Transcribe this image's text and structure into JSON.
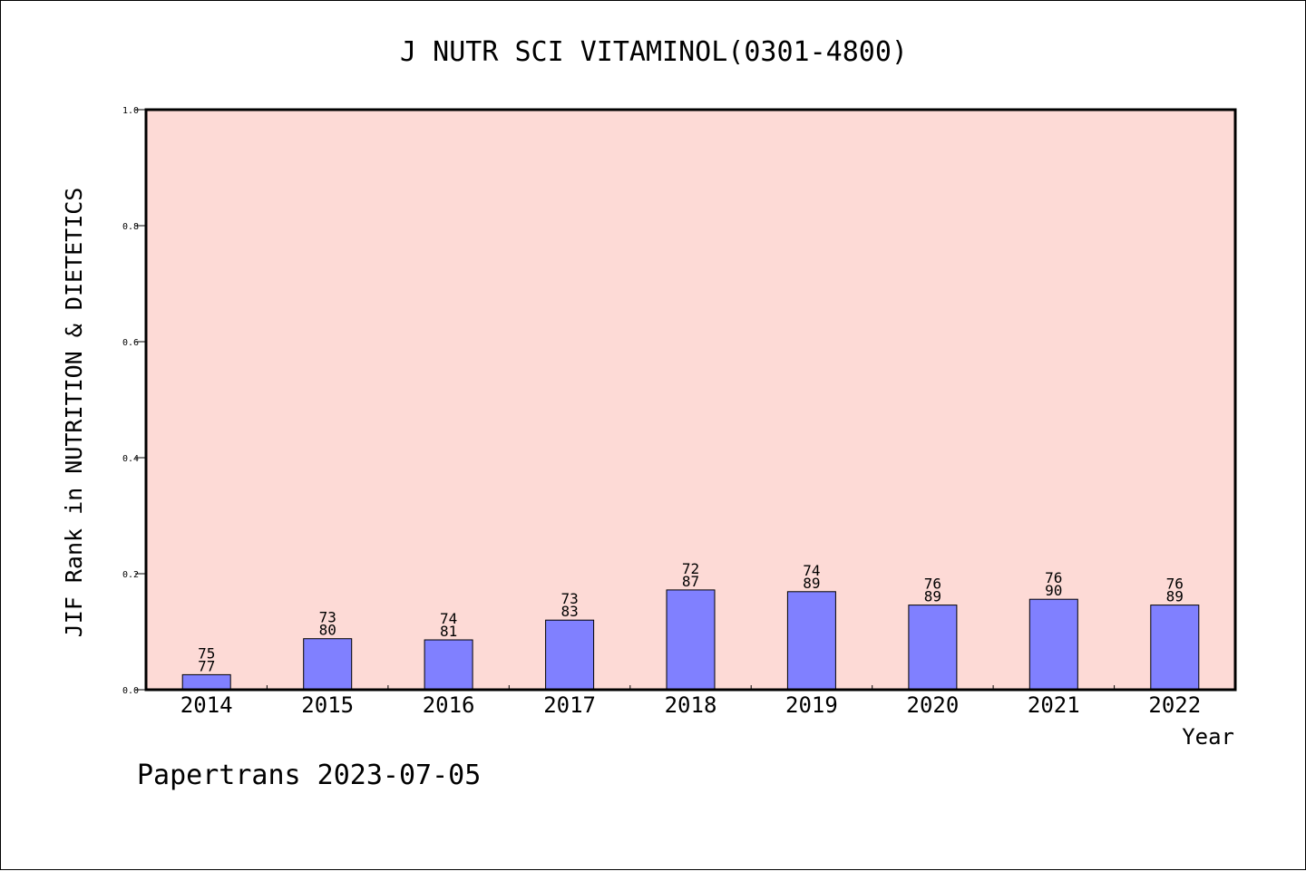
{
  "chart_data": {
    "type": "bar",
    "title": "J NUTR SCI VITAMINOL(0301-4800)",
    "xlabel": "Year",
    "ylabel": "JIF Rank in NUTRITION & DIETETICS",
    "ylim": [
      0,
      1.0
    ],
    "yticks": [
      "0.0",
      "0.2",
      "0.4",
      "0.6",
      "0.8",
      "1.0"
    ],
    "categories": [
      "2014",
      "2015",
      "2016",
      "2017",
      "2018",
      "2019",
      "2020",
      "2021",
      "2022"
    ],
    "values": [
      0.026,
      0.088,
      0.086,
      0.12,
      0.172,
      0.169,
      0.146,
      0.156,
      0.146
    ],
    "labels": [
      [
        "75",
        "77"
      ],
      [
        "73",
        "80"
      ],
      [
        "74",
        "81"
      ],
      [
        "73",
        "83"
      ],
      [
        "72",
        "87"
      ],
      [
        "74",
        "89"
      ],
      [
        "76",
        "89"
      ],
      [
        "76",
        "90"
      ],
      [
        "76",
        "89"
      ]
    ],
    "colors": {
      "plot_background": "#fddad6",
      "bar_fill": "#8080ff",
      "bar_stroke": "#000000"
    },
    "grid": false,
    "legend": "none"
  },
  "footer": {
    "text": "Papertrans 2023-07-05"
  }
}
